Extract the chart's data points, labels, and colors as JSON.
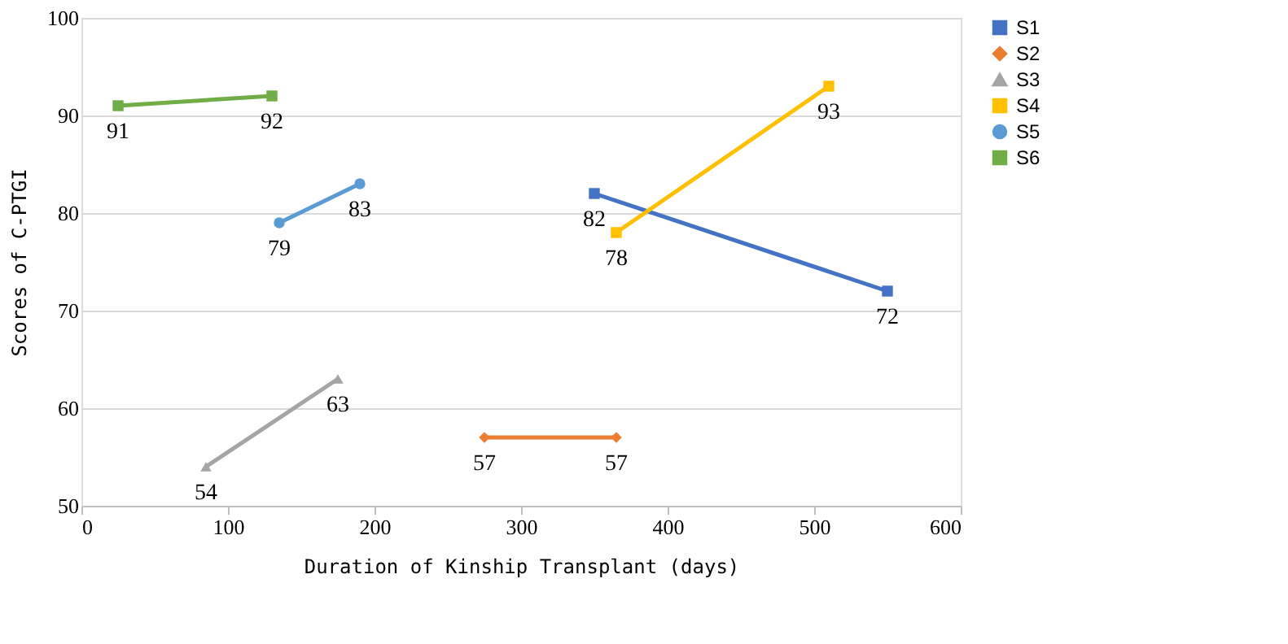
{
  "chart_data": {
    "type": "line",
    "xlabel": "Duration of Kinship Transplant (days)",
    "ylabel": "Scores of C-PTGI",
    "xlim": [
      0,
      600
    ],
    "xticks": [
      0,
      100,
      200,
      300,
      400,
      500,
      600
    ],
    "ylim": [
      50,
      100
    ],
    "yticks": [
      50,
      60,
      70,
      80,
      90,
      100
    ],
    "grid": "y",
    "legend": "right",
    "data_labels": true,
    "line_style": "solid",
    "series": [
      {
        "name": "S1",
        "color": "#4472c4",
        "marker": "square",
        "x": [
          350,
          550
        ],
        "values": [
          82,
          72
        ]
      },
      {
        "name": "S2",
        "color": "#ed7d31",
        "marker": "diamond",
        "x": [
          275,
          365
        ],
        "values": [
          57,
          57
        ]
      },
      {
        "name": "S3",
        "color": "#a5a5a5",
        "marker": "triangle",
        "x": [
          85,
          175
        ],
        "values": [
          54,
          63
        ]
      },
      {
        "name": "S4",
        "color": "#ffc000",
        "marker": "square",
        "x": [
          365,
          510
        ],
        "values": [
          78,
          93
        ]
      },
      {
        "name": "S5",
        "color": "#5b9bd5",
        "marker": "circle",
        "x": [
          135,
          190
        ],
        "values": [
          79,
          83
        ]
      },
      {
        "name": "S6",
        "color": "#70ad47",
        "marker": "square",
        "x": [
          25,
          130
        ],
        "values": [
          91,
          92
        ]
      }
    ]
  }
}
